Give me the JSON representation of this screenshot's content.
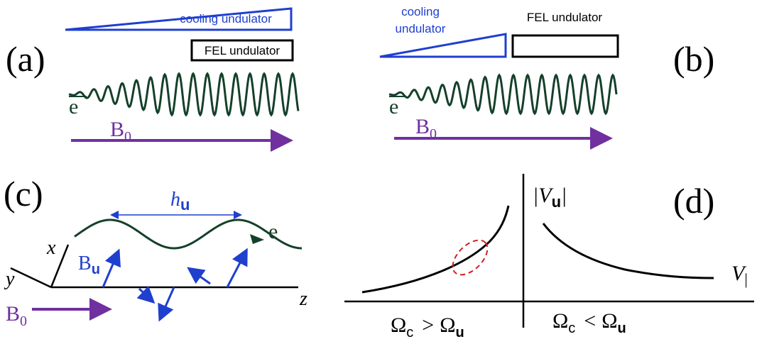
{
  "panel_a": {
    "label": "(a)",
    "cooling": "cooling undulator",
    "fel": "FEL undulator",
    "electron": "e",
    "field": {
      "base": "B",
      "sub": "0"
    }
  },
  "panel_b": {
    "label": "(b)",
    "cooling": [
      "cooling",
      "undulator"
    ],
    "fel": "FEL undulator",
    "electron": "e",
    "field": {
      "base": "B",
      "sub": "0"
    }
  },
  "panel_c": {
    "label": "(c)",
    "period": {
      "base": "h",
      "sub": "u"
    },
    "axes": [
      "x",
      "y",
      "z"
    ],
    "electron": "e",
    "undulator_field": {
      "base": "B",
      "sub": "u"
    },
    "field": {
      "base": "B",
      "sub": "0"
    }
  },
  "panel_d": {
    "label": "(d)",
    "y_axis": {
      "base": "|V",
      "sub": "u",
      "end": "|"
    },
    "x_axis": {
      "base": "V",
      "sub": "|"
    },
    "regions": [
      {
        "lhs": {
          "base": "Ω",
          "sub": "c"
        },
        "op": ">",
        "rhs": {
          "base": "Ω",
          "sub": "u"
        }
      },
      {
        "lhs": {
          "base": "Ω",
          "sub": "c"
        },
        "op": "<",
        "rhs": {
          "base": "Ω",
          "sub": "u"
        }
      }
    ]
  }
}
